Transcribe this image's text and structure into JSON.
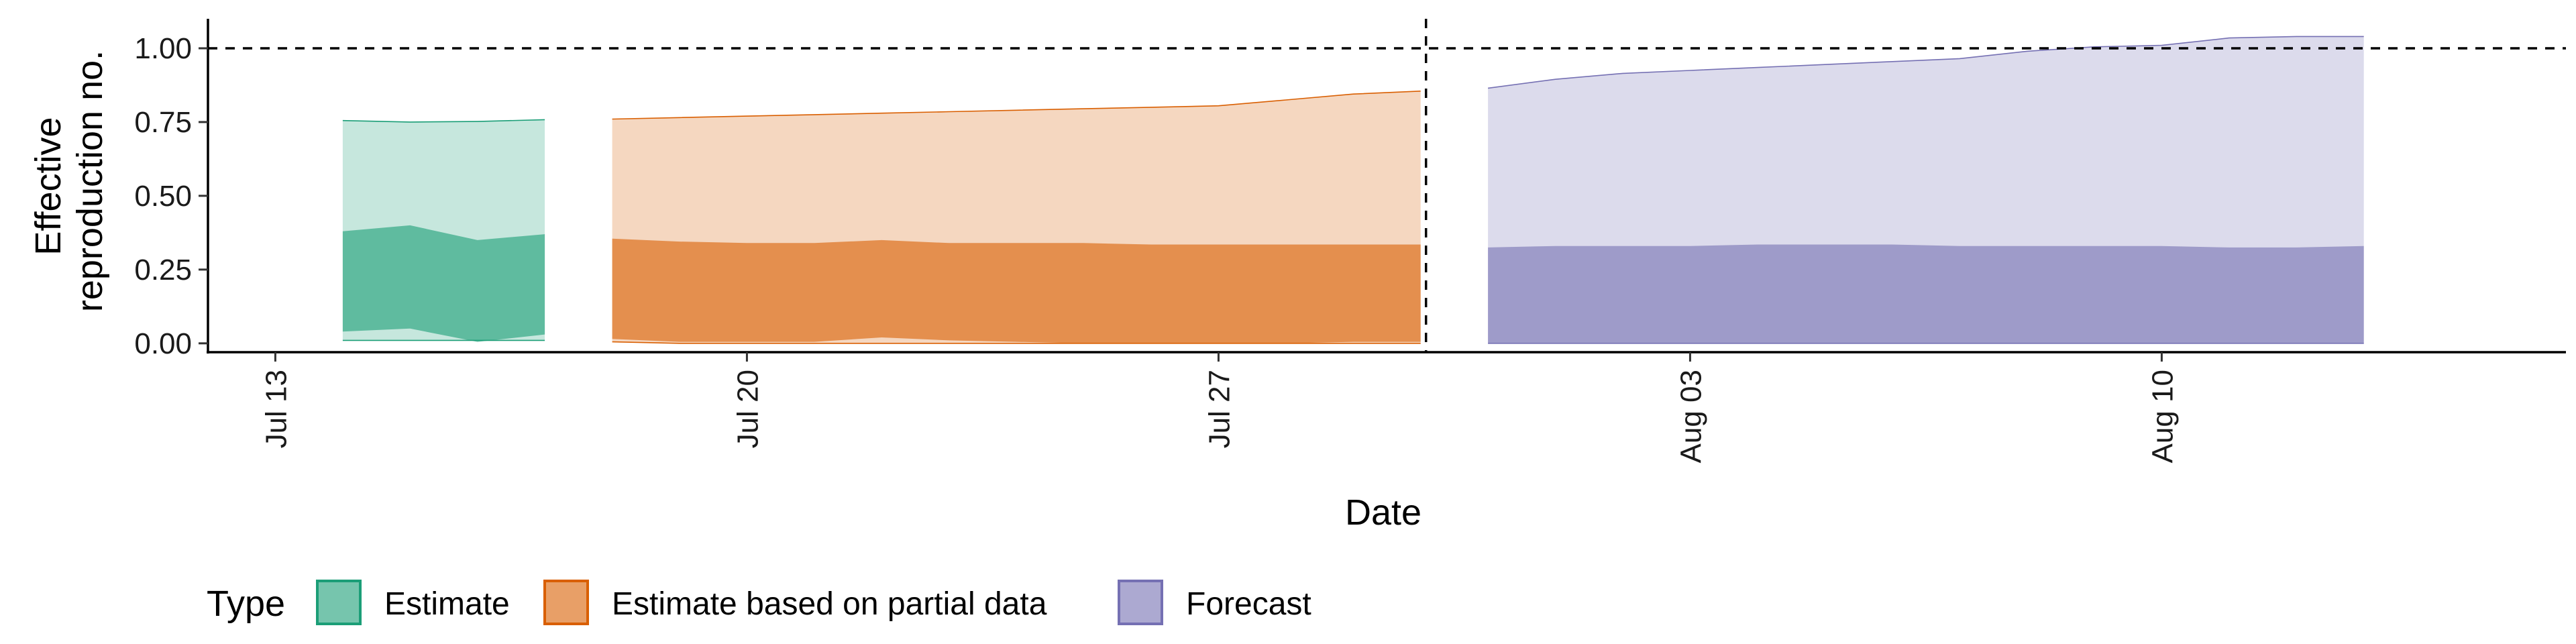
{
  "chart_data": {
    "type": "area",
    "xlabel": "Date",
    "ylabel": [
      "Effective",
      "reproduction no."
    ],
    "ylim": [
      -0.03,
      1.1
    ],
    "xlim": [
      "2020-07-12",
      "2020-08-16"
    ],
    "x_ticks": [
      "2020-07-13",
      "2020-07-20",
      "2020-07-27",
      "2020-08-03",
      "2020-08-10"
    ],
    "x_tick_labels": [
      "Jul 13",
      "Jul 20",
      "Jul 27",
      "Aug 03",
      "Aug 10"
    ],
    "y_ticks": [
      0.0,
      0.25,
      0.5,
      0.75,
      1.0
    ],
    "y_tick_labels": [
      "0.00",
      "0.25",
      "0.50",
      "0.75",
      "1.00"
    ],
    "reference_hline": 1.0,
    "reference_vline": "2020-07-30",
    "legend_title": "Type",
    "legend_position": "bottom-left",
    "series": [
      {
        "name": "Estimate",
        "color": "#1b9e77",
        "x": [
          "2020-07-14",
          "2020-07-15",
          "2020-07-16",
          "2020-07-17"
        ],
        "outer_lower": [
          0.01,
          0.01,
          0.01,
          0.01
        ],
        "outer_upper": [
          0.755,
          0.75,
          0.752,
          0.758
        ],
        "inner_lower": [
          0.04,
          0.05,
          0.005,
          0.03
        ],
        "inner_upper": [
          0.38,
          0.4,
          0.35,
          0.37
        ]
      },
      {
        "name": "Estimate based on partial data",
        "color": "#d95f02",
        "x": [
          "2020-07-18",
          "2020-07-19",
          "2020-07-20",
          "2020-07-21",
          "2020-07-22",
          "2020-07-23",
          "2020-07-24",
          "2020-07-25",
          "2020-07-26",
          "2020-07-27",
          "2020-07-28",
          "2020-07-29",
          "2020-07-30"
        ],
        "outer_lower": [
          0.005,
          0.0,
          0.0,
          0.0,
          0.0,
          0.0,
          0.0,
          0.0,
          0.0,
          0.0,
          0.0,
          0.0,
          0.0
        ],
        "outer_upper": [
          0.76,
          0.765,
          0.77,
          0.775,
          0.78,
          0.785,
          0.79,
          0.795,
          0.8,
          0.805,
          0.825,
          0.845,
          0.855
        ],
        "inner_lower": [
          0.015,
          0.005,
          0.005,
          0.005,
          0.02,
          0.01,
          0.005,
          0.0,
          0.0,
          0.0,
          0.0,
          0.005,
          0.005
        ],
        "inner_upper": [
          0.355,
          0.345,
          0.34,
          0.34,
          0.35,
          0.34,
          0.34,
          0.34,
          0.335,
          0.335,
          0.335,
          0.335,
          0.335
        ]
      },
      {
        "name": "Forecast",
        "color": "#7570b3",
        "x": [
          "2020-07-31",
          "2020-08-01",
          "2020-08-02",
          "2020-08-03",
          "2020-08-04",
          "2020-08-05",
          "2020-08-06",
          "2020-08-07",
          "2020-08-08",
          "2020-08-09",
          "2020-08-10",
          "2020-08-11",
          "2020-08-12",
          "2020-08-13"
        ],
        "outer_lower": [
          0.0,
          0.0,
          0.0,
          0.0,
          0.0,
          0.0,
          0.0,
          0.0,
          0.0,
          0.0,
          0.0,
          0.0,
          0.0,
          0.0
        ],
        "outer_upper": [
          0.865,
          0.895,
          0.915,
          0.925,
          0.935,
          0.945,
          0.955,
          0.965,
          0.99,
          1.005,
          1.01,
          1.035,
          1.04,
          1.04
        ],
        "inner_lower": [
          0.0,
          0.0,
          0.0,
          0.0,
          0.0,
          0.0,
          0.0,
          0.0,
          0.0,
          0.0,
          0.0,
          0.0,
          0.0,
          0.0
        ],
        "inner_upper": [
          0.325,
          0.33,
          0.33,
          0.33,
          0.335,
          0.335,
          0.335,
          0.33,
          0.33,
          0.33,
          0.33,
          0.325,
          0.325,
          0.33
        ]
      }
    ]
  }
}
